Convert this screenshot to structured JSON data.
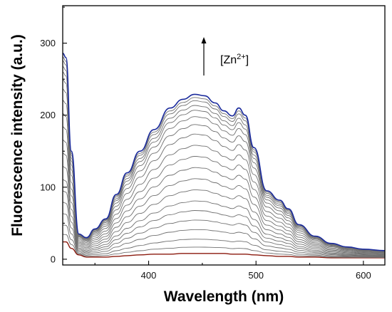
{
  "chart_data": {
    "type": "line",
    "title": "",
    "xlabel": "Wavelength (nm)",
    "ylabel": "Fluorescence intensity (a.u.)",
    "xlim": [
      320,
      620
    ],
    "ylim": [
      -8,
      352
    ],
    "xticks": [
      400,
      500,
      600
    ],
    "yticks": [
      0,
      100,
      200,
      300
    ],
    "grid": false,
    "legend": "none",
    "annotation": {
      "text": "[Zn2+]",
      "arrow": "up",
      "meaning": "increasing Zn2+ concentration"
    },
    "colors": {
      "axis": "#000000",
      "first_series": "#8b1a0e",
      "middle_series": "#707070",
      "last_series": "#1a2a9c"
    },
    "series_shape": {
      "x": [
        320,
        323,
        328,
        335,
        342,
        350,
        360,
        370,
        380,
        392,
        405,
        420,
        432,
        443,
        452,
        462,
        470,
        478,
        484,
        490,
        498,
        510,
        522,
        530,
        540,
        555,
        570,
        585,
        600,
        620
      ],
      "y": [
        286,
        280,
        150,
        35,
        30,
        42,
        56,
        90,
        120,
        150,
        180,
        210,
        222,
        229,
        227,
        217,
        206,
        199,
        210,
        200,
        155,
        95,
        82,
        70,
        48,
        32,
        22,
        17,
        14,
        12
      ],
      "floor": [
        24,
        24,
        15,
        6,
        3,
        3,
        3,
        4,
        5,
        6,
        7,
        7,
        8,
        8,
        8,
        8,
        8,
        7,
        7,
        7,
        6,
        5,
        4,
        4,
        3,
        3,
        2,
        2,
        2,
        2
      ]
    },
    "series_scale": [
      0,
      0.04,
      0.09,
      0.15,
      0.21,
      0.27,
      0.33,
      0.4,
      0.47,
      0.54,
      0.61,
      0.68,
      0.75,
      0.81,
      0.86,
      0.9,
      0.93,
      0.96,
      0.98,
      1.0
    ]
  }
}
